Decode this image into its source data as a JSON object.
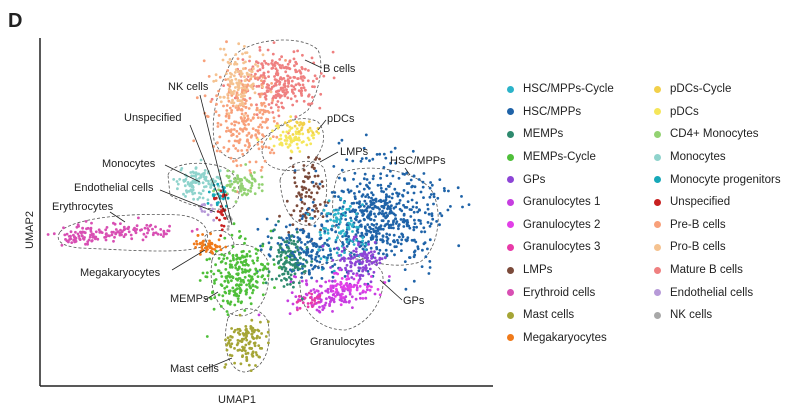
{
  "panel_letter": "D",
  "chart_data": {
    "type": "scatter",
    "title": "",
    "xlabel": "UMAP1",
    "ylabel": "UMAP2",
    "grid": false,
    "legend_placement": "right",
    "legend": [
      {
        "name": "HSC/MPPs-Cycle",
        "color": "#2bb3c9"
      },
      {
        "name": "HSC/MPPs",
        "color": "#1f63a8"
      },
      {
        "name": "MEMPs",
        "color": "#2e8a6e"
      },
      {
        "name": "MEMPs-Cycle",
        "color": "#4fbf3a"
      },
      {
        "name": "GPs",
        "color": "#8d45d6"
      },
      {
        "name": "Granulocytes 1",
        "color": "#c63ee0"
      },
      {
        "name": "Granulocytes 2",
        "color": "#e23fe8"
      },
      {
        "name": "Granulocytes 3",
        "color": "#e83aa8"
      },
      {
        "name": "LMPs",
        "color": "#7b4a3a"
      },
      {
        "name": "Erythroid cells",
        "color": "#d84fb3"
      },
      {
        "name": "Mast cells",
        "color": "#a5a536"
      },
      {
        "name": "Megakaryocytes",
        "color": "#f07a1a"
      },
      {
        "name": "pDCs-Cycle",
        "color": "#f2d04a"
      },
      {
        "name": "pDCs",
        "color": "#f5e65a"
      },
      {
        "name": "CD4+ Monocytes",
        "color": "#93d272"
      },
      {
        "name": "Monocytes",
        "color": "#8fd3cc"
      },
      {
        "name": "Monocyte progenitors",
        "color": "#17a8b8"
      },
      {
        "name": "Unspecified",
        "color": "#c82020"
      },
      {
        "name": "Pre-B cells",
        "color": "#f8a07a"
      },
      {
        "name": "Pro-B cells",
        "color": "#f5c290"
      },
      {
        "name": "Mature B cells",
        "color": "#ef8080"
      },
      {
        "name": "Endothelial cells",
        "color": "#b79ad8"
      },
      {
        "name": "NK cells",
        "color": "#a8a8a8"
      }
    ],
    "annotations": [
      "B cells",
      "NK cells",
      "Unspecified",
      "pDCs",
      "LMPs",
      "HSC/MPPs",
      "Monocytes",
      "Endothelial cells",
      "Erythrocytes",
      "Megakaryocytes",
      "MEMPs",
      "GPs",
      "Granulocytes",
      "Mast cells"
    ]
  }
}
